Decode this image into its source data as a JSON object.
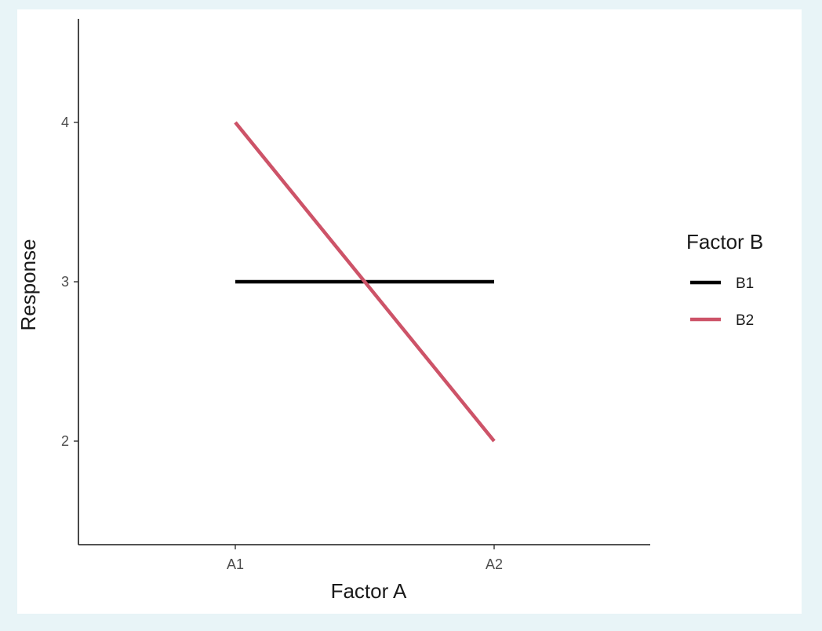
{
  "chart_data": {
    "type": "line",
    "title": "",
    "xlabel": "Factor A",
    "ylabel": "Response",
    "categories": [
      "A1",
      "A2"
    ],
    "ylim": [
      1.35,
      4.65
    ],
    "yticks": [
      2,
      3,
      4
    ],
    "grid": false,
    "legend": {
      "title": "Factor B",
      "placement": "right"
    },
    "series": [
      {
        "name": "B1",
        "values": [
          3,
          3
        ],
        "color": "#000000"
      },
      {
        "name": "B2",
        "values": [
          4,
          2
        ],
        "color": "#cd5368"
      }
    ]
  }
}
